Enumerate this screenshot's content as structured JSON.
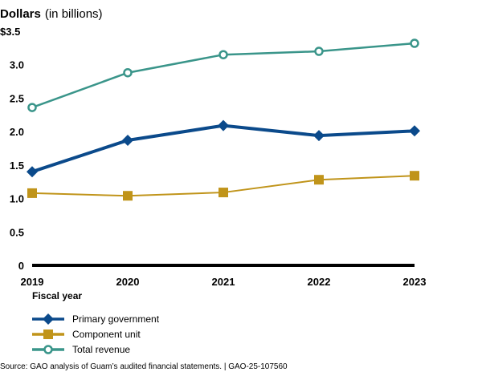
{
  "chart_data": {
    "type": "line",
    "title": "Dollars",
    "title_unit": "(in billions)",
    "xlabel": "Fiscal year",
    "ylabel": "Dollars (in billions)",
    "x": [
      "2019",
      "2020",
      "2021",
      "2022",
      "2023"
    ],
    "ylim": [
      0,
      3.5
    ],
    "yticks": [
      {
        "value": 0,
        "label": "0"
      },
      {
        "value": 0.5,
        "label": "0.5"
      },
      {
        "value": 1.0,
        "label": "1.0"
      },
      {
        "value": 1.5,
        "label": "1.5"
      },
      {
        "value": 2.0,
        "label": "2.0"
      },
      {
        "value": 2.5,
        "label": "2.5"
      },
      {
        "value": 3.0,
        "label": "3.0"
      },
      {
        "value": 3.5,
        "label": "$3.5"
      }
    ],
    "grid": false,
    "legend_position": "bottom-left",
    "series": [
      {
        "name": "Primary government",
        "color": "#0b4a8b",
        "marker": "diamond",
        "values": [
          1.4,
          1.87,
          2.09,
          1.94,
          2.01
        ]
      },
      {
        "name": "Component unit",
        "color": "#c0941a",
        "marker": "square",
        "values": [
          1.08,
          1.04,
          1.09,
          1.28,
          1.34
        ]
      },
      {
        "name": "Total revenue",
        "color": "#3a958a",
        "marker": "circle",
        "values": [
          2.36,
          2.88,
          3.15,
          3.2,
          3.32
        ]
      }
    ],
    "source": "Source: GAO analysis of Guam’s audited financial statements.  |  GAO-25-107560"
  }
}
